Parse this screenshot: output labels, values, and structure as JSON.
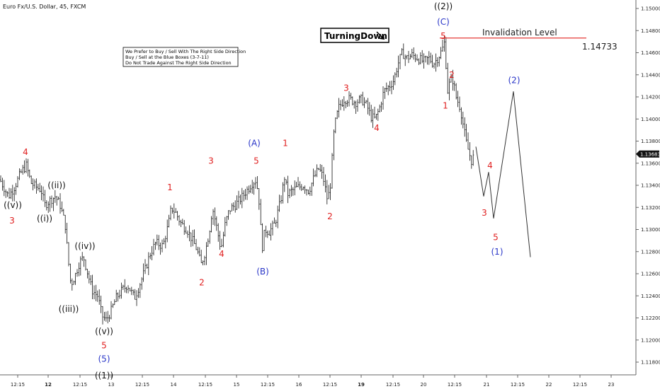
{
  "header": {
    "title": "Euro Fx/U.S. Dollar, 45, FXCM"
  },
  "notes": [
    "We Prefer to Buy / Sell With The Right Side Direction",
    "Buy / Sell at the Blue Boxes (3-7-11)",
    "Do Not Trade Against The Right Side Direction"
  ],
  "badge": {
    "label": "TurningDown",
    "icon": "down-right-arrow-icon"
  },
  "invalidation": {
    "label": "Invalidation Level",
    "price_label": "1.14733",
    "value": 1.14733,
    "color": "#e53935"
  },
  "price_tag": {
    "label": "1.13683",
    "value": 1.13683
  },
  "colors": {
    "red": "#e02020",
    "blue": "#2a36c8",
    "black": "#111111"
  },
  "chart_data": {
    "type": "ohlc",
    "ylim": [
      1.1168,
      1.1512
    ],
    "xlim": [
      0,
      932
    ],
    "yticks": [
      "1.15000",
      "1.14800",
      "1.14600",
      "1.14400",
      "1.14200",
      "1.14000",
      "1.13800",
      "1.13600",
      "1.13400",
      "1.13200",
      "1.13000",
      "1.12800",
      "1.12600",
      "1.12400",
      "1.12200",
      "1.12000",
      "1.11800"
    ],
    "ytick_values": [
      1.15,
      1.148,
      1.146,
      1.144,
      1.142,
      1.14,
      1.138,
      1.136,
      1.134,
      1.132,
      1.13,
      1.128,
      1.126,
      1.124,
      1.122,
      1.12,
      1.118
    ],
    "xticks": [
      {
        "x": 25,
        "label": "12:15",
        "bold": false
      },
      {
        "x": 68,
        "label": "12",
        "bold": true
      },
      {
        "x": 113,
        "label": "12:15",
        "bold": false
      },
      {
        "x": 157,
        "label": "13",
        "bold": false
      },
      {
        "x": 201,
        "label": "12:15",
        "bold": false
      },
      {
        "x": 245,
        "label": "14",
        "bold": false
      },
      {
        "x": 290,
        "label": "12:15",
        "bold": false
      },
      {
        "x": 334,
        "label": "15",
        "bold": false
      },
      {
        "x": 378,
        "label": "12:15",
        "bold": false
      },
      {
        "x": 422,
        "label": "16",
        "bold": false
      },
      {
        "x": 466,
        "label": "12:15",
        "bold": false
      },
      {
        "x": 510,
        "label": "19",
        "bold": true
      },
      {
        "x": 555,
        "label": "12:15",
        "bold": false
      },
      {
        "x": 598,
        "label": "20",
        "bold": false
      },
      {
        "x": 642,
        "label": "12:15",
        "bold": false
      },
      {
        "x": 687,
        "label": "21",
        "bold": false
      },
      {
        "x": 731,
        "label": "12:15",
        "bold": false
      },
      {
        "x": 775,
        "label": "22",
        "bold": false
      },
      {
        "x": 819,
        "label": "12:15",
        "bold": false
      },
      {
        "x": 863,
        "label": "23",
        "bold": false
      }
    ],
    "price_path": [
      [
        0,
        1.1345
      ],
      [
        12,
        1.133
      ],
      [
        20,
        1.1338
      ],
      [
        30,
        1.1352
      ],
      [
        37,
        1.1358
      ],
      [
        44,
        1.1342
      ],
      [
        52,
        1.1338
      ],
      [
        58,
        1.1336
      ],
      [
        63,
        1.1322
      ],
      [
        70,
        1.1326
      ],
      [
        78,
        1.133
      ],
      [
        85,
        1.1322
      ],
      [
        92,
        1.1305
      ],
      [
        96,
        1.1275
      ],
      [
        100,
        1.125
      ],
      [
        106,
        1.1258
      ],
      [
        112,
        1.127
      ],
      [
        118,
        1.1275
      ],
      [
        124,
        1.126
      ],
      [
        130,
        1.1245
      ],
      [
        138,
        1.124
      ],
      [
        144,
        1.1222
      ],
      [
        150,
        1.1218
      ],
      [
        156,
        1.1225
      ],
      [
        164,
        1.1238
      ],
      [
        172,
        1.1245
      ],
      [
        180,
        1.125
      ],
      [
        190,
        1.1238
      ],
      [
        196,
        1.1248
      ],
      [
        204,
        1.1262
      ],
      [
        212,
        1.1278
      ],
      [
        220,
        1.1288
      ],
      [
        230,
        1.1285
      ],
      [
        238,
        1.1305
      ],
      [
        242,
        1.132
      ],
      [
        248,
        1.1315
      ],
      [
        256,
        1.1305
      ],
      [
        264,
        1.13
      ],
      [
        272,
        1.129
      ],
      [
        278,
        1.1282
      ],
      [
        284,
        1.1268
      ],
      [
        290,
        1.128
      ],
      [
        296,
        1.13
      ],
      [
        300,
        1.132
      ],
      [
        306,
        1.1302
      ],
      [
        312,
        1.1282
      ],
      [
        318,
        1.1305
      ],
      [
        324,
        1.1318
      ],
      [
        332,
        1.1322
      ],
      [
        340,
        1.1328
      ],
      [
        348,
        1.1335
      ],
      [
        356,
        1.1342
      ],
      [
        362,
        1.1345
      ],
      [
        366,
        1.1325
      ],
      [
        370,
        1.1282
      ],
      [
        374,
        1.13
      ],
      [
        380,
        1.1298
      ],
      [
        388,
        1.1305
      ],
      [
        396,
        1.1325
      ],
      [
        402,
        1.1348
      ],
      [
        406,
        1.1332
      ],
      [
        412,
        1.1335
      ],
      [
        420,
        1.1338
      ],
      [
        428,
        1.134
      ],
      [
        436,
        1.1335
      ],
      [
        444,
        1.1348
      ],
      [
        450,
        1.1355
      ],
      [
        456,
        1.1348
      ],
      [
        462,
        1.1328
      ],
      [
        466,
        1.1335
      ],
      [
        472,
        1.1392
      ],
      [
        478,
        1.141
      ],
      [
        486,
        1.1418
      ],
      [
        494,
        1.1418
      ],
      [
        502,
        1.1415
      ],
      [
        510,
        1.1418
      ],
      [
        518,
        1.1412
      ],
      [
        524,
        1.1402
      ],
      [
        530,
        1.14
      ],
      [
        536,
        1.141
      ],
      [
        542,
        1.1425
      ],
      [
        550,
        1.143
      ],
      [
        556,
        1.1435
      ],
      [
        562,
        1.145
      ],
      [
        568,
        1.146
      ],
      [
        574,
        1.1455
      ],
      [
        582,
        1.1458
      ],
      [
        590,
        1.1455
      ],
      [
        598,
        1.1452
      ],
      [
        606,
        1.1455
      ],
      [
        612,
        1.145
      ],
      [
        618,
        1.1455
      ],
      [
        624,
        1.1462
      ],
      [
        628,
        1.147
      ],
      [
        632,
        1.1425
      ],
      [
        636,
        1.1435
      ],
      [
        640,
        1.1435
      ],
      [
        644,
        1.142
      ],
      [
        650,
        1.141
      ],
      [
        654,
        1.1395
      ],
      [
        658,
        1.138
      ],
      [
        662,
        1.137
      ],
      [
        666,
        1.1362
      ],
      [
        670,
        1.1368
      ]
    ],
    "forecast_path": [
      [
        672,
        1.1375
      ],
      [
        683,
        1.133
      ],
      [
        690,
        1.1352
      ],
      [
        697,
        1.131
      ],
      [
        725,
        1.1425
      ],
      [
        749,
        1.1275
      ]
    ],
    "wave_labels": [
      {
        "text": "4",
        "x": 36,
        "p": 1.137,
        "color": "red"
      },
      {
        "text": "((v))",
        "x": 18,
        "p": 1.1322,
        "color": "black"
      },
      {
        "text": "3",
        "x": 17,
        "p": 1.1308,
        "color": "red"
      },
      {
        "text": "((ii))",
        "x": 80,
        "p": 1.134,
        "color": "black"
      },
      {
        "text": "((i))",
        "x": 63,
        "p": 1.131,
        "color": "black"
      },
      {
        "text": "((iv))",
        "x": 120,
        "p": 1.1285,
        "color": "black"
      },
      {
        "text": "((iii))",
        "x": 97,
        "p": 1.1228,
        "color": "black"
      },
      {
        "text": "((v))",
        "x": 147,
        "p": 1.1208,
        "color": "black"
      },
      {
        "text": "5",
        "x": 147,
        "p": 1.1195,
        "color": "red"
      },
      {
        "text": "(5)",
        "x": 147,
        "p": 1.1183,
        "color": "blue"
      },
      {
        "text": "((1))",
        "x": 147,
        "p": 1.1168,
        "color": "black"
      },
      {
        "text": "1",
        "x": 240,
        "p": 1.1338,
        "color": "red"
      },
      {
        "text": "3",
        "x": 298,
        "p": 1.1362,
        "color": "red"
      },
      {
        "text": "2",
        "x": 285,
        "p": 1.1252,
        "color": "red"
      },
      {
        "text": "4",
        "x": 313,
        "p": 1.1278,
        "color": "red"
      },
      {
        "text": "(A)",
        "x": 359,
        "p": 1.1378,
        "color": "blue"
      },
      {
        "text": "5",
        "x": 362,
        "p": 1.1362,
        "color": "red"
      },
      {
        "text": "(B)",
        "x": 371,
        "p": 1.1262,
        "color": "blue"
      },
      {
        "text": "1",
        "x": 403,
        "p": 1.1378,
        "color": "red"
      },
      {
        "text": "2",
        "x": 466,
        "p": 1.1312,
        "color": "red"
      },
      {
        "text": "3",
        "x": 489,
        "p": 1.1428,
        "color": "red"
      },
      {
        "text": "4",
        "x": 532,
        "p": 1.1392,
        "color": "red"
      },
      {
        "text": "((2))",
        "x": 626,
        "p": 1.1502,
        "color": "black"
      },
      {
        "text": "(C)",
        "x": 626,
        "p": 1.1488,
        "color": "blue"
      },
      {
        "text": "5",
        "x": 626,
        "p": 1.1475,
        "color": "red"
      },
      {
        "text": "2",
        "x": 638,
        "p": 1.144,
        "color": "red"
      },
      {
        "text": "1",
        "x": 629,
        "p": 1.1412,
        "color": "red"
      },
      {
        "text": "4",
        "x": 692,
        "p": 1.1358,
        "color": "red"
      },
      {
        "text": "3",
        "x": 684,
        "p": 1.1315,
        "color": "red"
      },
      {
        "text": "5",
        "x": 700,
        "p": 1.1293,
        "color": "red"
      },
      {
        "text": "(1)",
        "x": 702,
        "p": 1.128,
        "color": "blue"
      },
      {
        "text": "(2)",
        "x": 726,
        "p": 1.1435,
        "color": "blue"
      }
    ]
  }
}
